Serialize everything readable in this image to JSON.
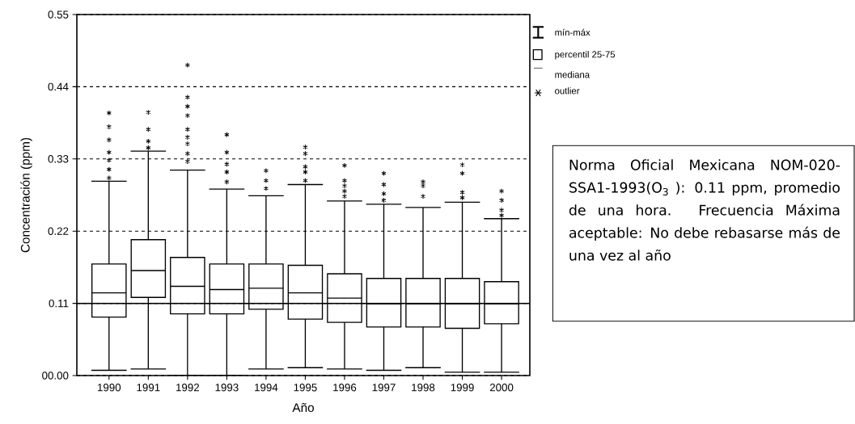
{
  "chart_data": {
    "type": "box",
    "xlabel": "Año",
    "ylabel": "Concentración (ppm)",
    "categories": [
      "1990",
      "1991",
      "1992",
      "1993",
      "1994",
      "1995",
      "1996",
      "1997",
      "1998",
      "1999",
      "2000"
    ],
    "boxes": [
      {
        "low": 0.008,
        "q1": 0.089,
        "median": 0.126,
        "q3": 0.17,
        "high": 0.296,
        "outliers": [
          0.4,
          0.379,
          0.359,
          0.34,
          0.328,
          0.314,
          0.301
        ]
      },
      {
        "low": 0.01,
        "q1": 0.119,
        "median": 0.16,
        "q3": 0.207,
        "high": 0.342,
        "outliers": [
          0.401,
          0.375,
          0.357,
          0.347
        ]
      },
      {
        "low": 0.0,
        "q1": 0.094,
        "median": 0.136,
        "q3": 0.18,
        "high": 0.313,
        "outliers": [
          0.473,
          0.424,
          0.41,
          0.396,
          0.375,
          0.363,
          0.353,
          0.338,
          0.326
        ]
      },
      {
        "low": 0.0,
        "q1": 0.094,
        "median": 0.131,
        "q3": 0.17,
        "high": 0.284,
        "outliers": [
          0.367,
          0.34,
          0.322,
          0.31,
          0.295
        ]
      },
      {
        "low": 0.01,
        "q1": 0.101,
        "median": 0.133,
        "q3": 0.17,
        "high": 0.274,
        "outliers": [
          0.312,
          0.297,
          0.285
        ]
      },
      {
        "low": 0.012,
        "q1": 0.086,
        "median": 0.126,
        "q3": 0.168,
        "high": 0.291,
        "outliers": [
          0.348,
          0.338,
          0.318,
          0.31,
          0.297
        ]
      },
      {
        "low": 0.01,
        "q1": 0.081,
        "median": 0.118,
        "q3": 0.155,
        "high": 0.266,
        "outliers": [
          0.32,
          0.297,
          0.289,
          0.281,
          0.273
        ]
      },
      {
        "low": 0.008,
        "q1": 0.074,
        "median": 0.109,
        "q3": 0.148,
        "high": 0.261,
        "outliers": [
          0.308,
          0.291,
          0.277,
          0.267
        ]
      },
      {
        "low": 0.012,
        "q1": 0.074,
        "median": 0.109,
        "q3": 0.148,
        "high": 0.256,
        "outliers": [
          0.295,
          0.289,
          0.273
        ]
      },
      {
        "low": 0.005,
        "q1": 0.072,
        "median": 0.109,
        "q3": 0.148,
        "high": 0.264,
        "outliers": [
          0.321,
          0.308,
          0.279,
          0.271
        ]
      },
      {
        "low": 0.005,
        "q1": 0.079,
        "median": 0.109,
        "q3": 0.143,
        "high": 0.239,
        "outliers": [
          0.281,
          0.267,
          0.252,
          0.244
        ]
      }
    ],
    "ylim": [
      0,
      0.55
    ],
    "yticks": [
      {
        "value": 0,
        "label": "00.00"
      },
      0.11,
      0.22,
      0.33,
      0.44,
      0.55
    ],
    "grid": "y",
    "marker": "star",
    "ref_lines": [
      {
        "axis": "y",
        "value": 0.11,
        "line_style": "solid"
      }
    ],
    "annotations": [
      "mín-máx",
      "percentil 25-75",
      "mediana",
      "outlier",
      "Norma Oficial Mexicana NOM-020-SSA1-1993(O$_{3}$ ): 0.11 ppm, promedio de una hora. Frecuencia Máxima aceptable: No debe rebasarse más de una vez al año"
    ]
  }
}
